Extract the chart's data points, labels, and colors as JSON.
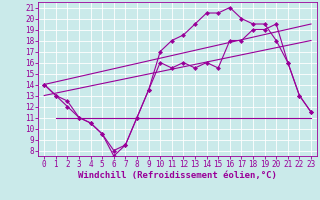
{
  "background_color": "#caeaea",
  "grid_color": "#ffffff",
  "line_color": "#990099",
  "xlabel": "Windchill (Refroidissement éolien,°C)",
  "xlabel_fontsize": 6.5,
  "tick_fontsize": 5.5,
  "xlim": [
    -0.5,
    23.5
  ],
  "ylim": [
    7.5,
    21.5
  ],
  "xticks": [
    0,
    1,
    2,
    3,
    4,
    5,
    6,
    7,
    8,
    9,
    10,
    11,
    12,
    13,
    14,
    15,
    16,
    17,
    18,
    19,
    20,
    21,
    22,
    23
  ],
  "yticks": [
    8,
    9,
    10,
    11,
    12,
    13,
    14,
    15,
    16,
    17,
    18,
    19,
    20,
    21
  ],
  "series": [
    {
      "x": [
        0,
        1,
        2,
        3,
        4,
        5,
        6,
        7,
        8,
        9,
        10,
        11,
        12,
        13,
        14,
        15,
        16,
        17,
        18,
        19,
        20,
        21,
        22,
        23
      ],
      "y": [
        14,
        13,
        12,
        11,
        10.5,
        9.5,
        8,
        8.5,
        11,
        13.5,
        17,
        18,
        18.5,
        19.5,
        20.5,
        20.5,
        21,
        20,
        19.5,
        19.5,
        18,
        16,
        13,
        11.5
      ],
      "marker": "D",
      "markersize": 2,
      "linewidth": 0.8
    },
    {
      "x": [
        0,
        1,
        2,
        3,
        4,
        5,
        6,
        7,
        8,
        9,
        10,
        11,
        12,
        13,
        14,
        15,
        16,
        17,
        18,
        19,
        20,
        21,
        22,
        23
      ],
      "y": [
        14,
        13,
        12.5,
        11,
        10.5,
        9.5,
        7.5,
        8.5,
        11,
        13.5,
        16,
        15.5,
        16,
        15.5,
        16,
        15.5,
        18,
        18,
        19,
        19,
        19.5,
        16,
        13,
        11.5
      ],
      "marker": "D",
      "markersize": 2,
      "linewidth": 0.8
    },
    {
      "x": [
        1,
        9,
        23
      ],
      "y": [
        11,
        11,
        11
      ],
      "marker": null,
      "linewidth": 0.8
    },
    {
      "x": [
        0,
        23
      ],
      "y": [
        14,
        19.5
      ],
      "marker": null,
      "linewidth": 0.8
    },
    {
      "x": [
        0,
        23
      ],
      "y": [
        13,
        18
      ],
      "marker": null,
      "linewidth": 0.8
    }
  ]
}
